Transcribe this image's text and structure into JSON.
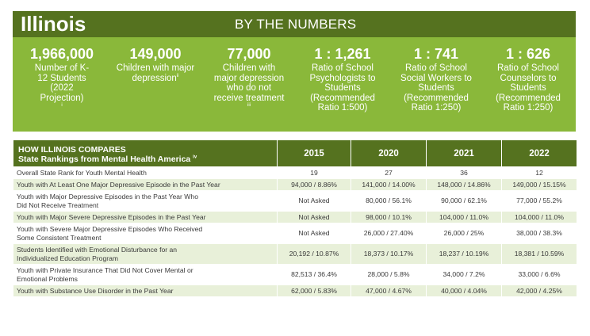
{
  "banner": {
    "state": "Illinois",
    "subtitle": "BY THE NUMBERS",
    "stats": [
      {
        "value": "1,966,000",
        "label": "Number of K-12 Students (2022 Projection)",
        "note": "i"
      },
      {
        "value": "149,000",
        "label": "Children with major depression",
        "note": "ii"
      },
      {
        "value": "77,000",
        "label": "Children with major depression who do not receive treatment",
        "note": "iii"
      },
      {
        "value": "1 : 1,261",
        "label": "Ratio of School Psychologists to Students (Recommended Ratio 1:500)",
        "note": ""
      },
      {
        "value": "1 : 741",
        "label": "Ratio of School Social Workers to Students (Recommended Ratio 1:250)",
        "note": ""
      },
      {
        "value": "1 : 626",
        "label": "Ratio of School Counselors to Students (Recommended Ratio 1:250)",
        "note": ""
      }
    ]
  },
  "table": {
    "title": "HOW ILLINOIS COMPARES",
    "subtitle": "State Rankings from Mental Health America",
    "subtitle_note": "iv",
    "years": [
      "2015",
      "2020",
      "2021",
      "2022"
    ],
    "rows": [
      {
        "label": "Overall State Rank for Youth Mental Health",
        "values": [
          "19",
          "27",
          "36",
          "12"
        ]
      },
      {
        "label": "Youth with At Least One Major Depressive Episode in the Past Year",
        "values": [
          "94,000 / 8.86%",
          "141,000 / 14.00%",
          "148,000 / 14.86%",
          "149,000 / 15.15%"
        ]
      },
      {
        "label": "Youth with Major Depressive Episodes in the Past Year Who Did Not Receive Treatment",
        "values": [
          "Not Asked",
          "80,000 / 56.1%",
          "90,000 / 62.1%",
          "77,000 / 55.2%"
        ]
      },
      {
        "label": "Youth with Major Severe Depressive Episodes in the Past Year",
        "values": [
          "Not Asked",
          "98,000 / 10.1%",
          "104,000 / 11.0%",
          "104,000 / 11.0%"
        ]
      },
      {
        "label": "Youth with Severe Major Depressive Episodes Who Received Some Consistent Treatment",
        "values": [
          "Not Asked",
          "26,000 / 27.40%",
          "26,000 / 25%",
          "38,000 / 38.3%"
        ]
      },
      {
        "label": "Students Identified with Emotional Disturbance for an Individualized Education Program",
        "values": [
          "20,192 / 10.87%",
          "18,373 / 10.17%",
          "18,237 / 10.19%",
          "18,381 / 10.59%"
        ]
      },
      {
        "label": "Youth with Private Insurance That Did Not Cover Mental or Emotional Problems",
        "values": [
          "82,513 / 36.4%",
          "28,000 / 5.8%",
          "34,000 / 7.2%",
          "33,000 / 6.6%"
        ]
      },
      {
        "label": "Youth with Substance Use Disorder in the Past Year",
        "values": [
          "62,000 / 5.83%",
          "47,000 / 4.67%",
          "40,000 / 4.04%",
          "42,000 / 4.25%"
        ]
      }
    ]
  }
}
